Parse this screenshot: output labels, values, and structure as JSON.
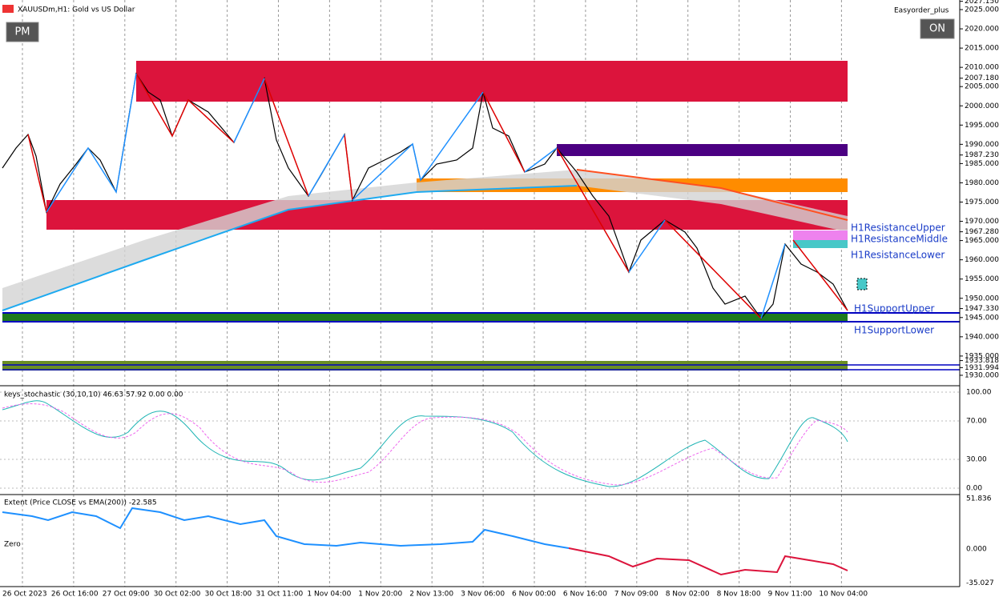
{
  "window": {
    "title": "XAUUSDm,H1: Gold vs US Dollar",
    "expert": "Easyorder_plus",
    "left_button": "PM",
    "right_button": "ON"
  },
  "price_axis": [
    "2027.150",
    "2025.000",
    "2020.000",
    "2015.000",
    "2010.000",
    "2007.180",
    "2005.000",
    "2000.000",
    "1995.000",
    "1990.000",
    "1987.230",
    "1985.000",
    "1980.000",
    "1975.000",
    "1970.000",
    "1967.280",
    "1965.000",
    "1960.000",
    "1955.000",
    "1950.000",
    "1947.330",
    "1945.000",
    "1940.000",
    "1935.000",
    "1933.818",
    "1931.994",
    "1930.000"
  ],
  "zones": [
    "H1ResistanceUpper",
    "H1ResistanceMiddle",
    "H1ResistanceLower",
    "H1SupportUpper",
    "H1SupportLower"
  ],
  "stochastic": {
    "label": "keys_stochastic (30,10,10) 46.63 57.92 0.00 0.00",
    "axis": [
      "100.00",
      "70.00",
      "30.00",
      "0.00"
    ]
  },
  "extent": {
    "label": "Extent (Price CLOSE vs EMA(200)) -22.585",
    "zero": "Zero",
    "axis": [
      "51.836",
      "0.000",
      "-35.027"
    ]
  },
  "time_axis": [
    "26 Oct 2023",
    "26 Oct 16:00",
    "27 Oct 09:00",
    "30 Oct 02:00",
    "30 Oct 18:00",
    "31 Oct 11:00",
    "1 Nov 04:00",
    "1 Nov 20:00",
    "2 Nov 13:00",
    "3 Nov 06:00",
    "6 Nov 00:00",
    "6 Nov 16:00",
    "7 Nov 09:00",
    "8 Nov 02:00",
    "8 Nov 18:00",
    "9 Nov 11:00",
    "10 Nov 04:00"
  ]
}
